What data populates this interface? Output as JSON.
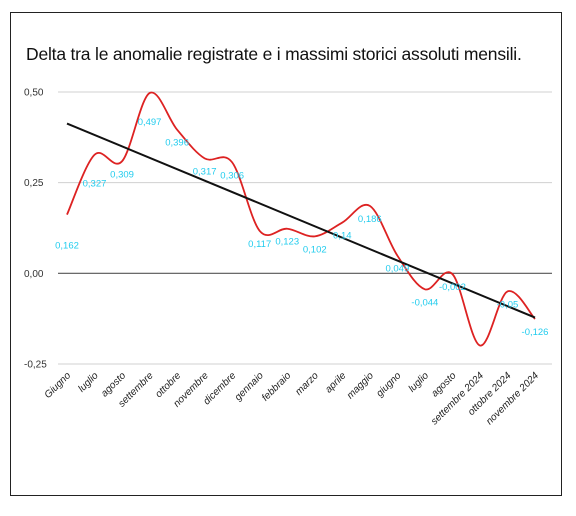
{
  "chart_data": {
    "type": "line",
    "title": "Delta tra le anomalie registrate e i massimi storici assoluti mensili.",
    "categories": [
      "Giugno",
      "luglio",
      "agosto",
      "settembre",
      "ottobre",
      "novembre",
      "dicembre",
      "gennaio",
      "febbraio",
      "marzo",
      "aprile",
      "maggio",
      "giugno",
      "luglio",
      "agosto",
      "settembre 2024",
      "ottobre 2024",
      "novembre 2024"
    ],
    "series": [
      {
        "values": [
          0.162,
          0.327,
          0.309,
          0.497,
          0.396,
          0.317,
          0.306,
          0.117,
          0.123,
          0.102,
          0.14,
          0.186,
          0.049,
          -0.044,
          -0.002,
          -0.199,
          -0.05,
          -0.126
        ],
        "data_labels": [
          "0,162",
          "0,327",
          "0,309",
          "0,497",
          "0,396",
          "0,317",
          "0,306",
          "0,117",
          "0,123",
          "0,102",
          "0,14",
          "0,186",
          "0,049",
          "-0,044",
          "-0,002",
          "",
          "-0,05",
          "-0,126"
        ],
        "color": "#dd2222",
        "smooth": true
      }
    ],
    "trendline": {
      "start": 0.413,
      "end": -0.122,
      "color": "#111111"
    },
    "y_ticks": [
      "0,50",
      "0,25",
      "0,00",
      "-0,25"
    ],
    "y_tick_values": [
      0.5,
      0.25,
      0.0,
      -0.25
    ],
    "ylim": [
      -0.25,
      0.5
    ],
    "grid": true,
    "label_color": "#22ccee",
    "zero_line_color": "#555555",
    "grid_color": "#d0d0d0"
  }
}
